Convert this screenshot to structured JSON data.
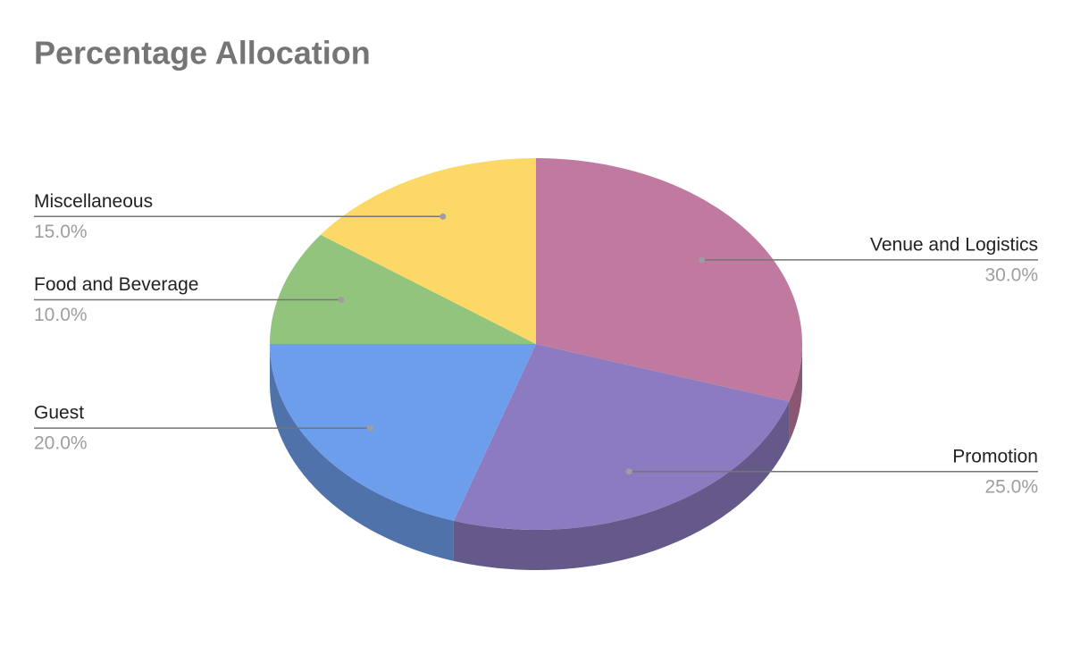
{
  "chart_data": {
    "type": "pie",
    "title": "Percentage Allocation",
    "categories": [
      "Venue and Logistics",
      "Promotion",
      "Guest",
      "Food and Beverage",
      "Miscellaneous"
    ],
    "values": [
      30,
      25,
      20,
      10,
      15
    ],
    "value_labels": [
      "30.0%",
      "25.0%",
      "20.0%",
      "10.0%",
      "15.0%"
    ],
    "colors": [
      "#c0799f",
      "#8c7bc0",
      "#6d9eeb",
      "#93c47d",
      "#fcd866"
    ]
  }
}
